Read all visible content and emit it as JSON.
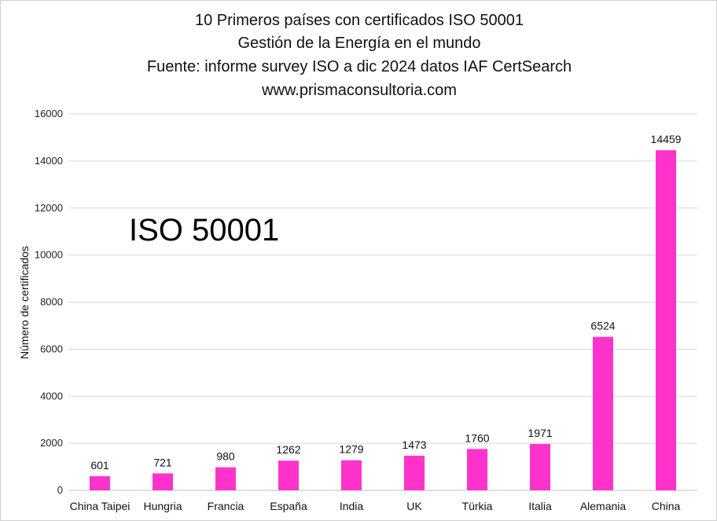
{
  "title_lines": [
    "10 Primeros países con certificados ISO 50001",
    "Gestión de la Energía en el mundo",
    "Fuente: informe survey ISO a dic 2024 datos IAF CertSearch",
    "www.prismaconsultoria.com"
  ],
  "overlay_label": "ISO 50001",
  "colors": {
    "bar": "#ff33cc",
    "grid": "#d9d9d9",
    "axis": "#bfbfbf"
  },
  "chart_data": {
    "type": "bar",
    "title": "10 Primeros países con certificados ISO 50001 Gestión de la Energía en el mundo Fuente: informe survey ISO a dic 2024 datos IAF CertSearch www.prismaconsultoria.com",
    "xlabel": "",
    "ylabel": "Número de certificados",
    "ylim": [
      0,
      16000
    ],
    "yticks": [
      0,
      2000,
      4000,
      6000,
      8000,
      10000,
      12000,
      14000,
      16000
    ],
    "grid": true,
    "categories": [
      "China Taipei",
      "Hungria",
      "Francia",
      "España",
      "India",
      "UK",
      "Türkia",
      "Italia",
      "Alemania",
      "China"
    ],
    "values": [
      601,
      721,
      980,
      1262,
      1279,
      1473,
      1760,
      1971,
      6524,
      14459
    ]
  }
}
